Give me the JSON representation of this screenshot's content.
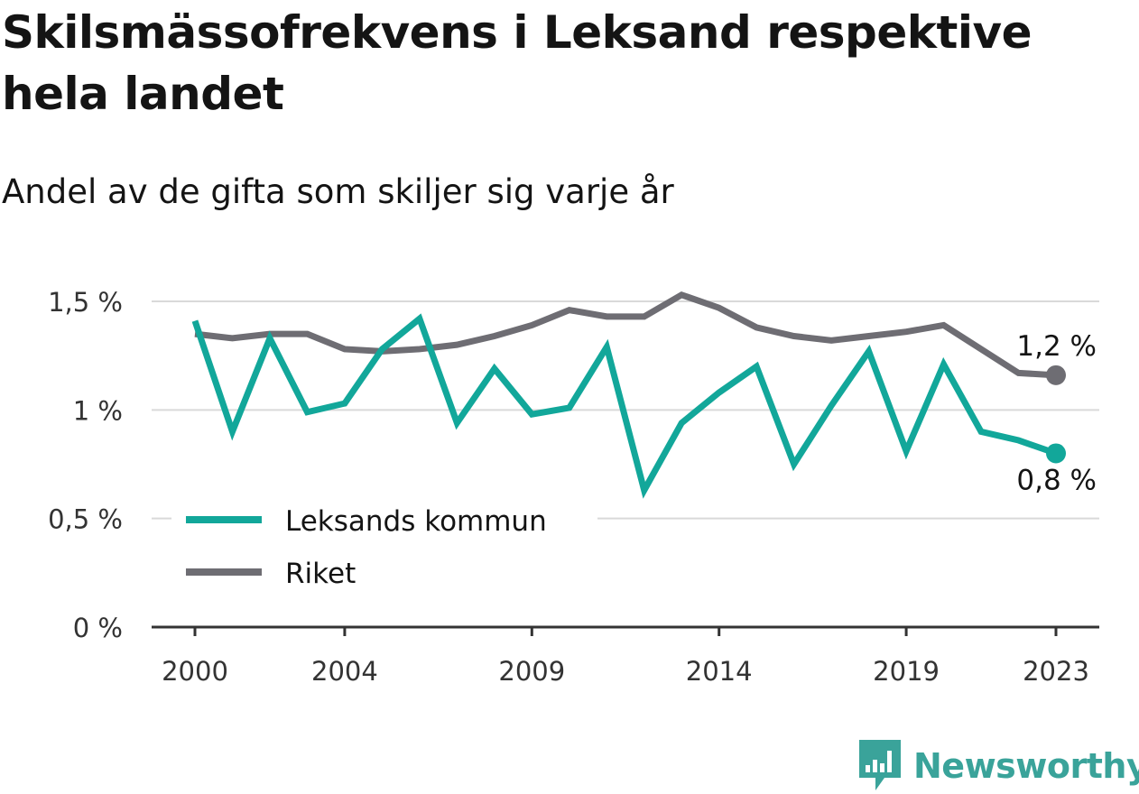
{
  "header": {
    "title": "Skilsmässofrekvens i Leksand respektive hela landet",
    "subtitle": "Andel av de gifta som skiljer sig varje år"
  },
  "brand": {
    "name": "Newsworthy",
    "icon": "newsworthy-logo-icon",
    "color": "#3aa39a"
  },
  "colors": {
    "leksand": "#12a79a",
    "riket": "#6e6d73",
    "grid": "#d9d9d9",
    "axis": "#333333"
  },
  "chart_data": {
    "type": "line",
    "title": "Skilsmässofrekvens i Leksand respektive hela landet",
    "subtitle": "Andel av de gifta som skiljer sig varje år",
    "x": [
      2000,
      2001,
      2002,
      2003,
      2004,
      2005,
      2006,
      2007,
      2008,
      2009,
      2010,
      2011,
      2012,
      2013,
      2014,
      2015,
      2016,
      2017,
      2018,
      2019,
      2020,
      2021,
      2022,
      2023
    ],
    "x_tick_labels": [
      "2000",
      "2004",
      "2009",
      "2014",
      "2019",
      "2023"
    ],
    "x_ticks": [
      2000,
      2004,
      2009,
      2014,
      2019,
      2023
    ],
    "y_tick_labels": [
      "0 %",
      "0,5 %",
      "1 %",
      "1,5 %"
    ],
    "y_ticks": [
      0,
      0.5,
      1,
      1.5
    ],
    "ylim": [
      0,
      1.5
    ],
    "grid": true,
    "legend_position": "bottom-left",
    "series": [
      {
        "name": "Leksands kommun",
        "color": "#12a79a",
        "values": [
          1.41,
          0.9,
          1.33,
          0.99,
          1.03,
          1.28,
          1.42,
          0.94,
          1.19,
          0.98,
          1.01,
          1.29,
          0.63,
          0.94,
          1.08,
          1.2,
          0.75,
          1.02,
          1.27,
          0.81,
          1.21,
          0.9,
          0.86,
          0.8
        ],
        "end_label": "0,8 %"
      },
      {
        "name": "Riket",
        "color": "#6e6d73",
        "values": [
          1.35,
          1.33,
          1.35,
          1.35,
          1.28,
          1.27,
          1.28,
          1.3,
          1.34,
          1.39,
          1.46,
          1.43,
          1.43,
          1.53,
          1.47,
          1.38,
          1.34,
          1.32,
          1.34,
          1.36,
          1.39,
          1.28,
          1.17,
          1.16
        ],
        "end_label": "1,2 %"
      }
    ]
  }
}
